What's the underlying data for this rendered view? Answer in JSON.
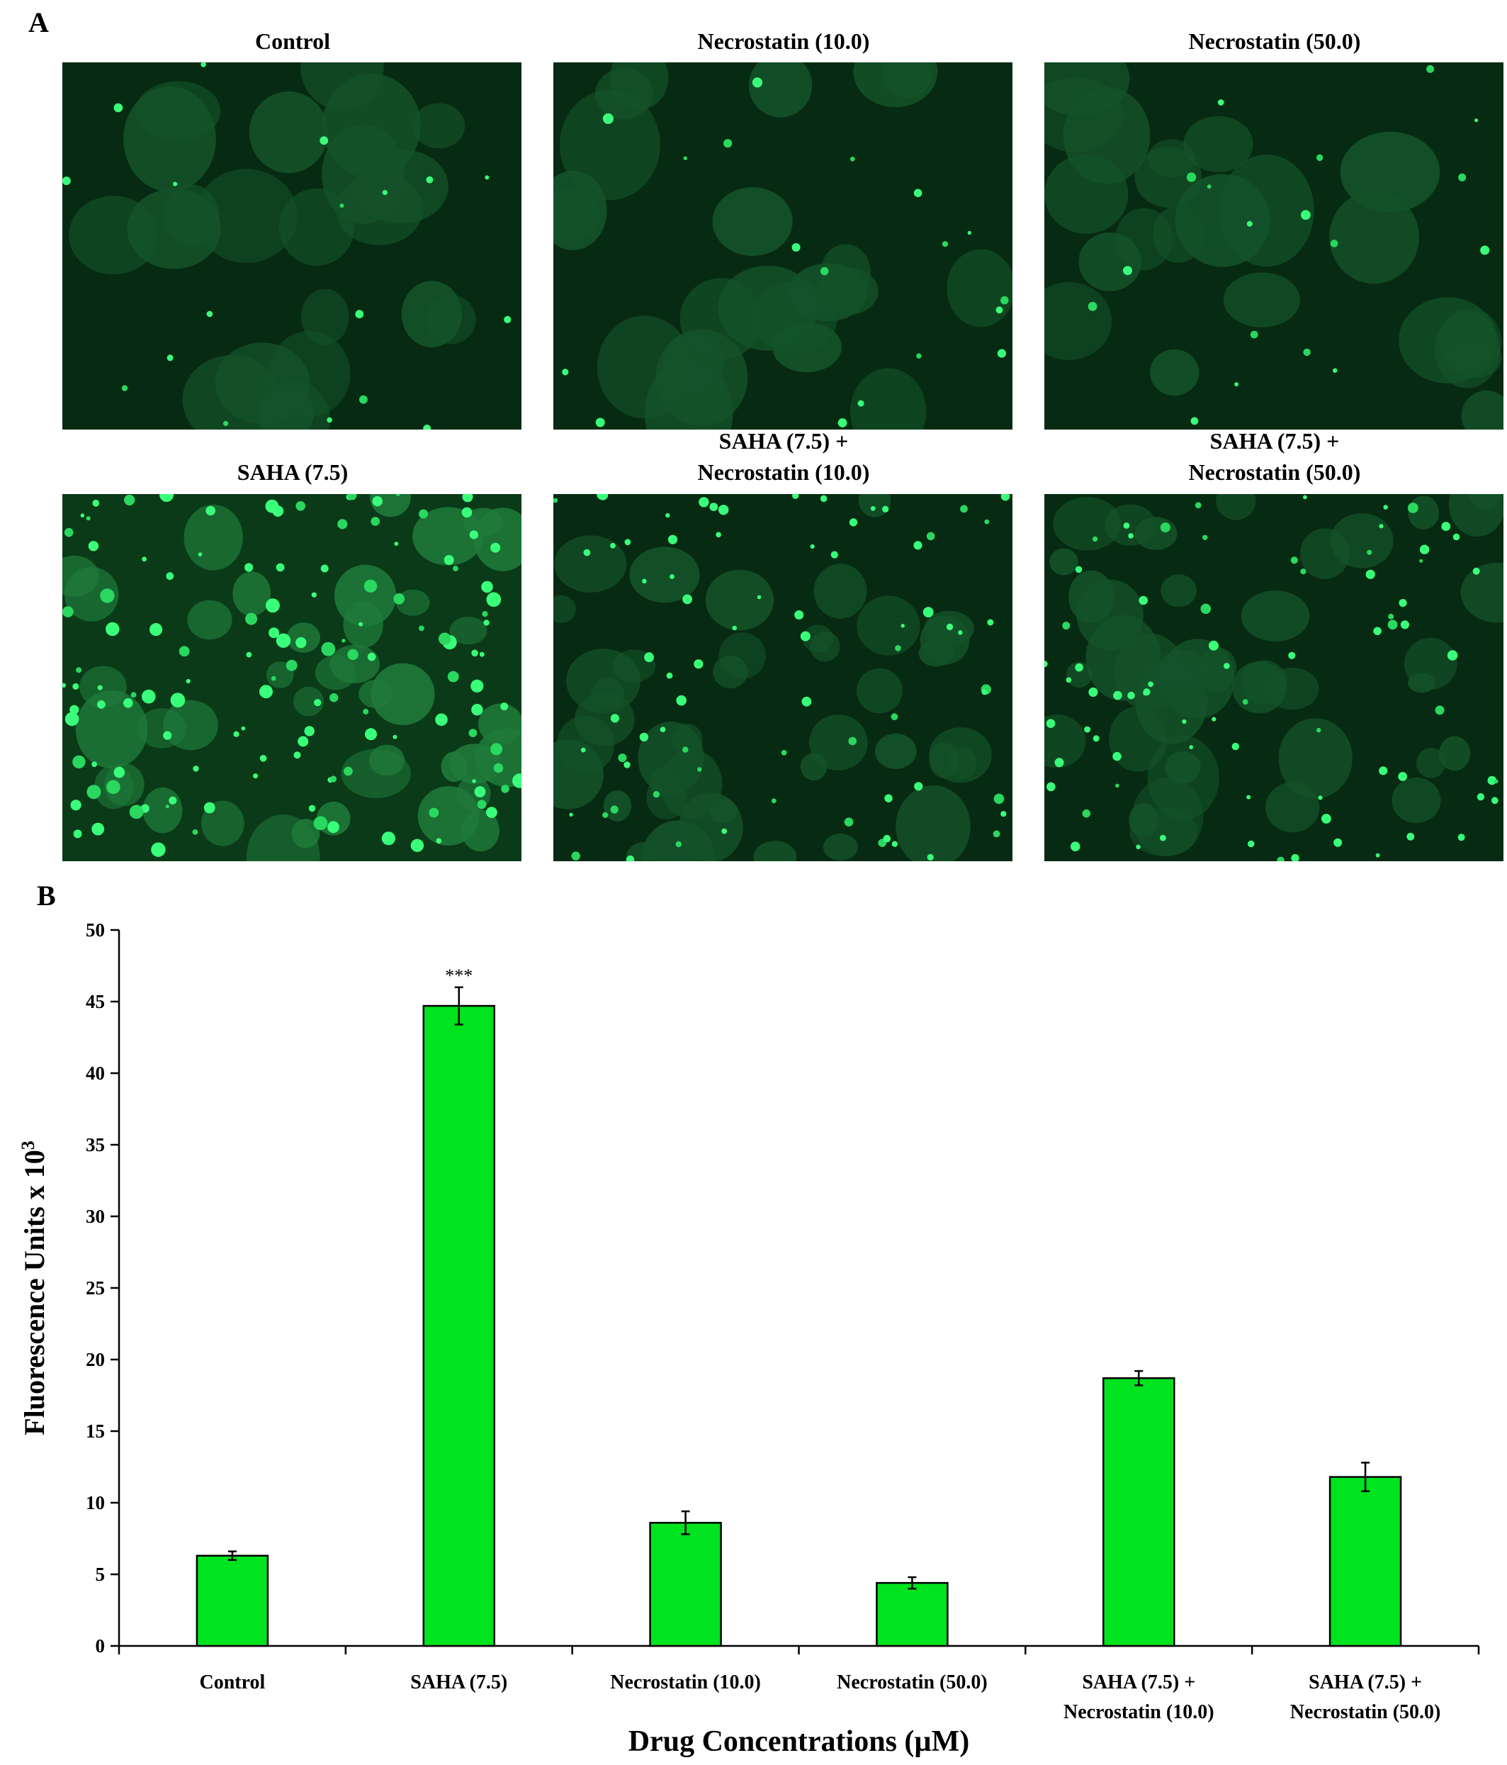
{
  "panel_a": {
    "letter": "A",
    "images": [
      {
        "title_lines": [
          "Control"
        ],
        "intensity": "low"
      },
      {
        "title_lines": [
          "Necrostatin (10.0)"
        ],
        "intensity": "low"
      },
      {
        "title_lines": [
          "Necrostatin (50.0)"
        ],
        "intensity": "low"
      },
      {
        "title_lines": [
          "SAHA (7.5)"
        ],
        "intensity": "high"
      },
      {
        "title_lines": [
          "SAHA (7.5) +",
          "Necrostatin (10.0)"
        ],
        "intensity": "medium"
      },
      {
        "title_lines": [
          "SAHA (7.5) +",
          "Necrostatin (50.0)"
        ],
        "intensity": "medium"
      }
    ]
  },
  "panel_b": {
    "letter": "B"
  },
  "chart_data": {
    "type": "bar",
    "categories": [
      [
        "Control"
      ],
      [
        "SAHA (7.5)"
      ],
      [
        "Necrostatin (10.0)"
      ],
      [
        "Necrostatin (50.0)"
      ],
      [
        "SAHA (7.5) +",
        "Necrostatin (10.0)"
      ],
      [
        "SAHA (7.5) +",
        "Necrostatin (50.0)"
      ]
    ],
    "values": [
      6.3,
      44.7,
      8.6,
      4.4,
      18.7,
      11.8
    ],
    "errors": [
      0.3,
      1.3,
      0.8,
      0.4,
      0.5,
      1.0
    ],
    "annotations": [
      "",
      "***",
      "",
      "",
      "",
      ""
    ],
    "ylabel": "Fluorescence Units x 10",
    "ylabel_superscript": "3",
    "xlabel": "Drug Concentrations (µM)",
    "ylim": [
      0,
      50
    ],
    "yticks": [
      0,
      5,
      10,
      15,
      20,
      25,
      30,
      35,
      40,
      45,
      50
    ],
    "bar_color": "#00e31f",
    "grid": false,
    "legend": "none"
  }
}
